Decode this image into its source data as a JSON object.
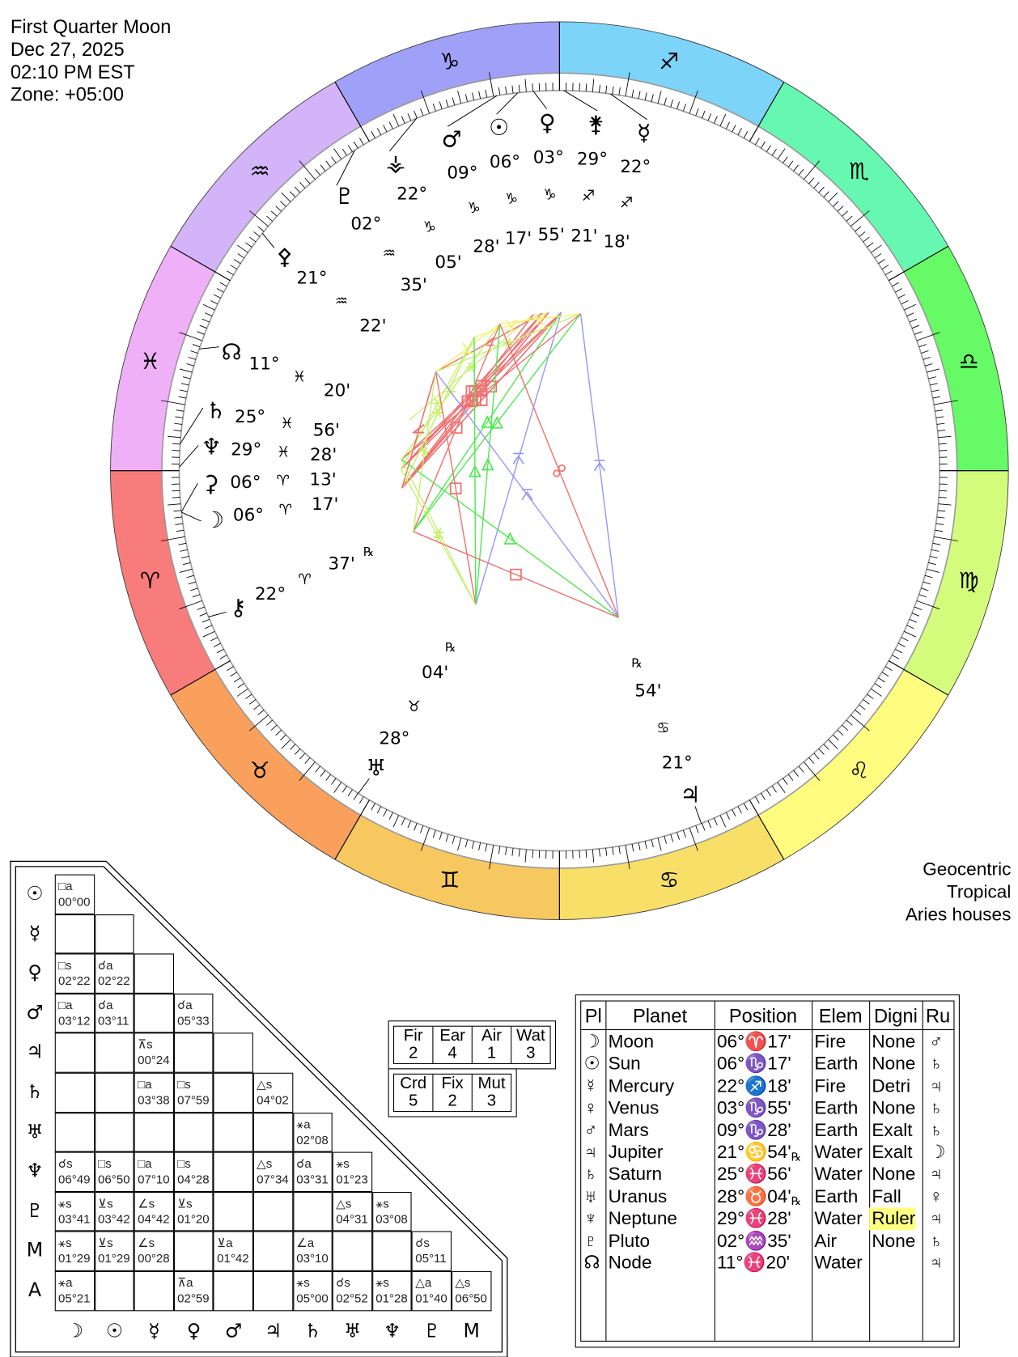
{
  "header": {
    "title": "First Quarter Moon",
    "date": "Dec 27, 2025",
    "time": "02:10 PM EST",
    "zone": "Zone: +05:00"
  },
  "chart_info": {
    "line1": "Geocentric",
    "line2": "Tropical",
    "line3": "Aries houses"
  },
  "zodiac": [
    {
      "name": "aries",
      "glyph": "♈",
      "color": "#f87c7c"
    },
    {
      "name": "taurus",
      "glyph": "♉",
      "color": "#f8a05c"
    },
    {
      "name": "gemini",
      "glyph": "♊",
      "color": "#f8c860"
    },
    {
      "name": "cancer",
      "glyph": "♋",
      "color": "#f8e068"
    },
    {
      "name": "leo",
      "glyph": "♌",
      "color": "#fffc80"
    },
    {
      "name": "virgo",
      "glyph": "♍",
      "color": "#d4fc7c"
    },
    {
      "name": "libra",
      "glyph": "♎",
      "color": "#66fa66"
    },
    {
      "name": "scorpio",
      "glyph": "♏",
      "color": "#66f8b0"
    },
    {
      "name": "sagittarius",
      "glyph": "♐",
      "color": "#7cd4f8"
    },
    {
      "name": "capricorn",
      "glyph": "♑",
      "color": "#a0a0f8"
    },
    {
      "name": "aquarius",
      "glyph": "♒",
      "color": "#d4b4f8"
    },
    {
      "name": "pisces",
      "glyph": "♓",
      "color": "#f0b0f8"
    }
  ],
  "wheel_points": [
    {
      "name": "mars",
      "glyph": "♂",
      "deg": "09°",
      "sign": "♑",
      "min": "28'",
      "rx": "",
      "lon": 279.467
    },
    {
      "name": "sun",
      "glyph": "☉",
      "deg": "06°",
      "sign": "♑",
      "min": "17'",
      "rx": "",
      "lon": 276.283
    },
    {
      "name": "venus",
      "glyph": "♀",
      "deg": "03°",
      "sign": "♑",
      "min": "55'",
      "rx": "",
      "lon": 273.917
    },
    {
      "name": "juno",
      "glyph": "⚵",
      "deg": "29°",
      "sign": "♐",
      "min": "21'",
      "rx": "",
      "lon": 269.35
    },
    {
      "name": "mercury",
      "glyph": "☿",
      "deg": "22°",
      "sign": "♐",
      "min": "18'",
      "rx": "",
      "lon": 262.3
    },
    {
      "name": "vesta",
      "glyph": "⚶",
      "deg": "22°",
      "sign": "♑",
      "min": "05'",
      "rx": "",
      "lon": 292.083
    },
    {
      "name": "pluto",
      "glyph": "♇",
      "deg": "02°",
      "sign": "♒",
      "min": "35'",
      "rx": "",
      "lon": 302.583
    },
    {
      "name": "pallas",
      "glyph": "⚴",
      "deg": "21°",
      "sign": "♒",
      "min": "22'",
      "rx": "",
      "lon": 321.367
    },
    {
      "name": "node",
      "glyph": "☊",
      "deg": "11°",
      "sign": "♓",
      "min": "20'",
      "rx": "",
      "lon": 341.333
    },
    {
      "name": "saturn",
      "glyph": "♄",
      "deg": "25°",
      "sign": "♓",
      "min": "56'",
      "rx": "",
      "lon": 355.933
    },
    {
      "name": "neptune",
      "glyph": "♆",
      "deg": "29°",
      "sign": "♓",
      "min": "28'",
      "rx": "",
      "lon": 359.467
    },
    {
      "name": "ceres",
      "glyph": "⚳",
      "deg": "06°",
      "sign": "♈",
      "min": "13'",
      "rx": "",
      "lon": 6.217
    },
    {
      "name": "moon",
      "glyph": "☽",
      "deg": "06°",
      "sign": "♈",
      "min": "17'",
      "rx": "",
      "lon": 6.283
    },
    {
      "name": "chiron",
      "glyph": "⚷",
      "deg": "22°",
      "sign": "♈",
      "min": "37'",
      "rx": "℞",
      "lon": 22.617
    },
    {
      "name": "uranus",
      "glyph": "♅",
      "deg": "28°",
      "sign": "♉",
      "min": "04'",
      "rx": "℞",
      "lon": 58.067
    },
    {
      "name": "jupiter",
      "glyph": "♃",
      "deg": "21°",
      "sign": "♋",
      "min": "54'",
      "rx": "℞",
      "lon": 111.9
    }
  ],
  "aspect_types": [
    {
      "angle": 30,
      "orb": 2,
      "glyph": "⊻",
      "color": "#f8f070"
    },
    {
      "angle": 45,
      "orb": 2,
      "glyph": "∠",
      "color": "#f07070"
    },
    {
      "angle": 60,
      "orb": 4.5,
      "glyph": "⚹",
      "color": "#c8f070"
    },
    {
      "angle": 90,
      "orb": 7,
      "glyph": "□",
      "color": "#f07070"
    },
    {
      "angle": 120,
      "orb": 7,
      "glyph": "△",
      "color": "#50e850"
    },
    {
      "angle": 150,
      "orb": 2,
      "glyph": "⊼",
      "color": "#9898f8"
    },
    {
      "angle": 180,
      "orb": 7,
      "glyph": "☍",
      "color": "#f07070"
    }
  ],
  "aspect_grid": {
    "row_labels": [
      "☉",
      "☿",
      "♀",
      "♂",
      "♃",
      "♄",
      "♅",
      "♆",
      "♇",
      "M",
      "A"
    ],
    "col_labels": [
      "☽",
      "☉",
      "☿",
      "♀",
      "♂",
      "♃",
      "♄",
      "♅",
      "♆",
      "♇",
      "M"
    ],
    "rows": [
      [
        [
          "□a",
          "00°00"
        ]
      ],
      [
        [
          "",
          ""
        ],
        [
          "",
          ""
        ]
      ],
      [
        [
          "□s",
          "02°22"
        ],
        [
          "☌a",
          "02°22"
        ],
        [
          "",
          ""
        ]
      ],
      [
        [
          "□a",
          "03°12"
        ],
        [
          "☌a",
          "03°11"
        ],
        [
          "",
          ""
        ],
        [
          "☌a",
          "05°33"
        ]
      ],
      [
        [
          "",
          ""
        ],
        [
          "",
          ""
        ],
        [
          "⊼s",
          "00°24"
        ],
        [
          "",
          ""
        ],
        [
          "",
          ""
        ]
      ],
      [
        [
          "",
          ""
        ],
        [
          "",
          ""
        ],
        [
          "□a",
          "03°38"
        ],
        [
          "□s",
          "07°59"
        ],
        [
          "",
          ""
        ],
        [
          "△s",
          "04°02"
        ]
      ],
      [
        [
          "",
          ""
        ],
        [
          "",
          ""
        ],
        [
          "",
          ""
        ],
        [
          "",
          ""
        ],
        [
          "",
          ""
        ],
        [
          "",
          ""
        ],
        [
          "⚹a",
          "02°08"
        ]
      ],
      [
        [
          "☌s",
          "06°49"
        ],
        [
          "□s",
          "06°50"
        ],
        [
          "□a",
          "07°10"
        ],
        [
          "□s",
          "04°28"
        ],
        [
          "",
          ""
        ],
        [
          "△s",
          "07°34"
        ],
        [
          "☌a",
          "03°31"
        ],
        [
          "⚹s",
          "01°23"
        ]
      ],
      [
        [
          "⚹s",
          "03°41"
        ],
        [
          "⊻s",
          "03°42"
        ],
        [
          "∠s",
          "04°42"
        ],
        [
          "⊻s",
          "01°20"
        ],
        [
          "",
          ""
        ],
        [
          "",
          ""
        ],
        [
          "",
          ""
        ],
        [
          "△s",
          "04°31"
        ],
        [
          "⚹s",
          "03°08"
        ]
      ],
      [
        [
          "⚹s",
          "01°29"
        ],
        [
          "⊻s",
          "01°29"
        ],
        [
          "∠s",
          "00°28"
        ],
        [
          "",
          ""
        ],
        [
          "⊻a",
          "01°42"
        ],
        [
          "",
          ""
        ],
        [
          "∠a",
          "03°10"
        ],
        [
          "",
          ""
        ],
        [
          "",
          ""
        ],
        [
          "☌s",
          "05°11"
        ]
      ],
      [
        [
          "⚹a",
          "05°21"
        ],
        [
          "",
          ""
        ],
        [
          "",
          ""
        ],
        [
          "⊼a",
          "02°59"
        ],
        [
          "",
          ""
        ],
        [
          "",
          ""
        ],
        [
          "⚹s",
          "05°00"
        ],
        [
          "☌s",
          "02°52"
        ],
        [
          "⚹s",
          "01°28"
        ],
        [
          "△a",
          "01°40"
        ],
        [
          "△s",
          "06°50"
        ]
      ]
    ]
  },
  "elements": {
    "labels": [
      "Fir",
      "Ear",
      "Air",
      "Wat"
    ],
    "values": [
      "2",
      "4",
      "1",
      "3"
    ]
  },
  "modalities": {
    "labels": [
      "Crd",
      "Fix",
      "Mut"
    ],
    "values": [
      "5",
      "2",
      "3"
    ]
  },
  "planet_table": {
    "headers": [
      "Pl",
      "Planet",
      "Position",
      "Elem",
      "Digni",
      "Ru"
    ],
    "rows": [
      {
        "glyph": "☽",
        "planet": "Moon",
        "pos": "06°♈17'",
        "rx": "",
        "elem": "Fire",
        "dig": "None",
        "ruler": "♂"
      },
      {
        "glyph": "☉",
        "planet": "Sun",
        "pos": "06°♑17'",
        "rx": "",
        "elem": "Earth",
        "dig": "None",
        "ruler": "♄"
      },
      {
        "glyph": "☿",
        "planet": "Mercury",
        "pos": "22°♐18'",
        "rx": "",
        "elem": "Fire",
        "dig": "Detri",
        "ruler": "♃"
      },
      {
        "glyph": "♀",
        "planet": "Venus",
        "pos": "03°♑55'",
        "rx": "",
        "elem": "Earth",
        "dig": "None",
        "ruler": "♄"
      },
      {
        "glyph": "♂",
        "planet": "Mars",
        "pos": "09°♑28'",
        "rx": "",
        "elem": "Earth",
        "dig": "Exalt",
        "ruler": "♄"
      },
      {
        "glyph": "♃",
        "planet": "Jupiter",
        "pos": "21°♋54'",
        "rx": "℞",
        "elem": "Water",
        "dig": "Exalt",
        "ruler": "☽"
      },
      {
        "glyph": "♄",
        "planet": "Saturn",
        "pos": "25°♓56'",
        "rx": "",
        "elem": "Water",
        "dig": "None",
        "ruler": "♃"
      },
      {
        "glyph": "♅",
        "planet": "Uranus",
        "pos": "28°♉04'",
        "rx": "℞",
        "elem": "Earth",
        "dig": "Fall",
        "ruler": "♀"
      },
      {
        "glyph": "♆",
        "planet": "Neptune",
        "pos": "29°♓28'",
        "rx": "",
        "elem": "Water",
        "dig": "Ruler",
        "ruler": "♃"
      },
      {
        "glyph": "♇",
        "planet": "Pluto",
        "pos": "02°♒35'",
        "rx": "",
        "elem": "Air",
        "dig": "None",
        "ruler": "♄"
      },
      {
        "glyph": "☊",
        "planet": "Node",
        "pos": "11°♓20'",
        "rx": "",
        "elem": "Water",
        "dig": "",
        "ruler": "♃"
      }
    ],
    "highlight_color": "#ffff80"
  }
}
